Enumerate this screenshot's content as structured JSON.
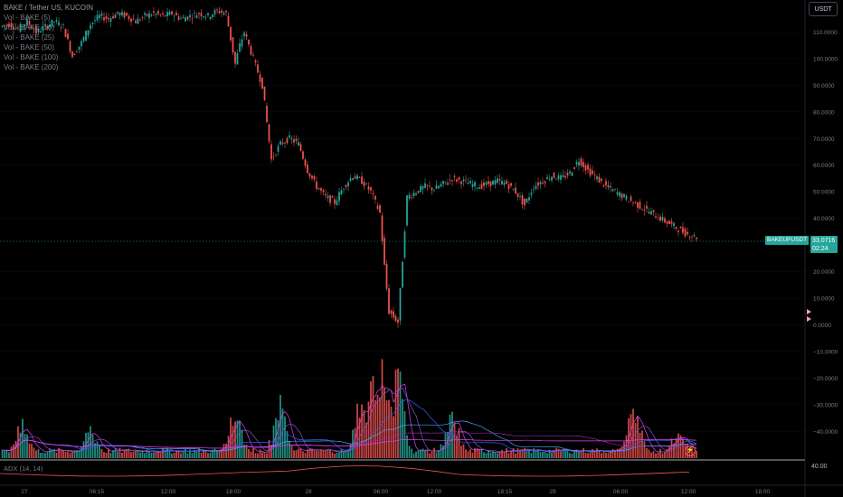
{
  "legend": {
    "symbol_line": "BAKE / Tether US, KUCOIN",
    "volume_lines": [
      "Vol - BAKE (5)",
      "Vol - BAKE (10)",
      "Vol - BAKE (25)",
      "Vol - BAKE (50)",
      "Vol - BAKE (100)",
      "Vol - BAKE (200)"
    ]
  },
  "currency_button": "USDT",
  "price_tag": {
    "symbol": "BAKEUPUSDT",
    "price": "33.0716",
    "countdown": "02:24"
  },
  "adx": {
    "label": "ADX (14, 14)",
    "value": "40.00"
  },
  "icons": {
    "flash": "flash-icon",
    "nav": "nav-arrow-icon"
  },
  "colors": {
    "up": "#26a69a",
    "down": "#ef5350",
    "background": "#000000",
    "adx_line": "#f7525f",
    "ma_lines": [
      "#e040fb",
      "#7e57c2",
      "#2962ff",
      "#42a5f5",
      "#9c27b0"
    ]
  },
  "chart_data": {
    "type": "candlestick",
    "y_axis": {
      "ticks": [
        "110.0000",
        "100.0000",
        "90.0000",
        "80.0000",
        "70.0000",
        "60.0000",
        "50.0000",
        "40.0000",
        "20.0000",
        "10.0000",
        "0.0000",
        "−10.0000",
        "−20.0000",
        "−30.0000",
        "−40.0000"
      ],
      "ylim": [
        -45,
        120
      ]
    },
    "x_axis": {
      "ticks": [
        "27",
        "06:15",
        "12:00",
        "18:00",
        "28",
        "06:00",
        "12:00",
        "18:15",
        "29",
        "06:00",
        "12:00",
        "18:00"
      ]
    },
    "close_path": [
      [
        0,
        112
      ],
      [
        4,
        113
      ],
      [
        8,
        111
      ],
      [
        12,
        114
      ],
      [
        16,
        110
      ],
      [
        20,
        112
      ],
      [
        24,
        114
      ],
      [
        28,
        112
      ],
      [
        32,
        101
      ],
      [
        36,
        106
      ],
      [
        40,
        113
      ],
      [
        44,
        116
      ],
      [
        48,
        115
      ],
      [
        52,
        117
      ],
      [
        56,
        116
      ],
      [
        60,
        114
      ],
      [
        64,
        116
      ],
      [
        68,
        117
      ],
      [
        72,
        116
      ],
      [
        76,
        117
      ],
      [
        80,
        115
      ],
      [
        84,
        116
      ],
      [
        88,
        117
      ],
      [
        92,
        116
      ],
      [
        96,
        118
      ],
      [
        100,
        117
      ],
      [
        104,
        98
      ],
      [
        106,
        105
      ],
      [
        108,
        110
      ],
      [
        110,
        105
      ],
      [
        112,
        100
      ],
      [
        116,
        90
      ],
      [
        120,
        62
      ],
      [
        124,
        68
      ],
      [
        128,
        70
      ],
      [
        132,
        68
      ],
      [
        136,
        58
      ],
      [
        140,
        52
      ],
      [
        144,
        48
      ],
      [
        148,
        46
      ],
      [
        152,
        52
      ],
      [
        156,
        56
      ],
      [
        160,
        54
      ],
      [
        164,
        50
      ],
      [
        168,
        42
      ],
      [
        170,
        22
      ],
      [
        172,
        5
      ],
      [
        176,
        1
      ],
      [
        180,
        48
      ],
      [
        184,
        50
      ],
      [
        188,
        52
      ],
      [
        192,
        51
      ],
      [
        196,
        53
      ],
      [
        200,
        55
      ],
      [
        204,
        54
      ],
      [
        208,
        53
      ],
      [
        212,
        52
      ],
      [
        216,
        53
      ],
      [
        220,
        54
      ],
      [
        224,
        53
      ],
      [
        228,
        50
      ],
      [
        232,
        45
      ],
      [
        236,
        52
      ],
      [
        240,
        54
      ],
      [
        244,
        56
      ],
      [
        248,
        55
      ],
      [
        252,
        57
      ],
      [
        256,
        62
      ],
      [
        260,
        58
      ],
      [
        264,
        55
      ],
      [
        268,
        52
      ],
      [
        272,
        50
      ],
      [
        276,
        48
      ],
      [
        280,
        46
      ],
      [
        284,
        44
      ],
      [
        288,
        42
      ],
      [
        292,
        40
      ],
      [
        296,
        38
      ],
      [
        300,
        36
      ],
      [
        304,
        34
      ],
      [
        308,
        33
      ]
    ],
    "volume": {
      "peak_markers": [
        [
          10,
          6
        ],
        [
          40,
          5
        ],
        [
          104,
          12
        ],
        [
          124,
          10
        ],
        [
          160,
          14
        ],
        [
          168,
          26
        ],
        [
          176,
          20
        ],
        [
          200,
          8
        ],
        [
          280,
          10
        ],
        [
          300,
          5
        ]
      ]
    },
    "current_price": 33.0716
  }
}
